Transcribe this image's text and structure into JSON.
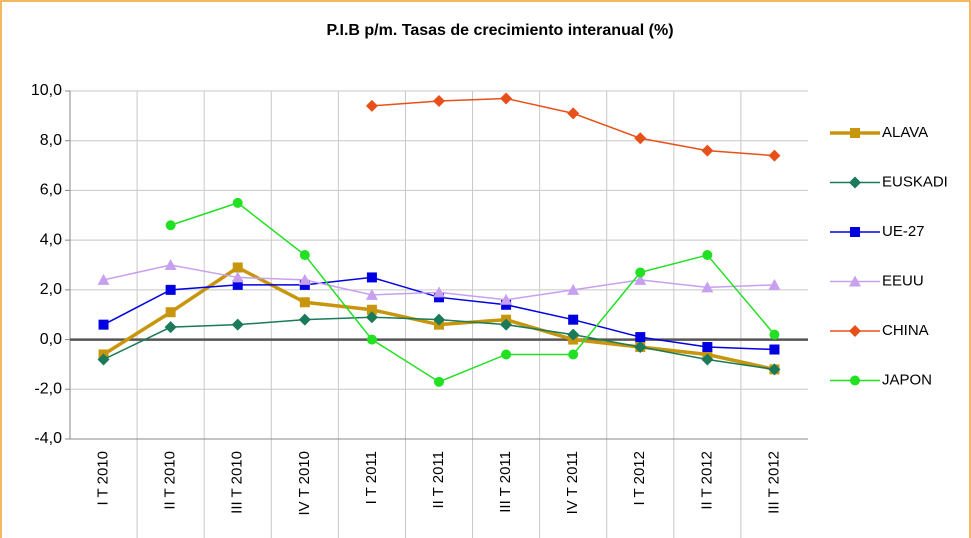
{
  "chart_data": {
    "type": "line",
    "title": "P.I.B p/m. Tasas de crecimiento interanual (%)",
    "categories": [
      "I T 2010",
      "II T 2010",
      "III T 2010",
      "IV T 2010",
      "I T 2011",
      "II T 2011",
      "III T 2011",
      "IV T 2011",
      "I T 2012",
      "II T 2012",
      "III T 2012"
    ],
    "series": [
      {
        "name": "ALAVA",
        "color": "#c8960c",
        "marker": "square",
        "values": [
          -0.6,
          1.1,
          2.9,
          1.5,
          1.2,
          0.6,
          0.8,
          0.0,
          -0.3,
          -0.6,
          -1.2
        ]
      },
      {
        "name": "EUSKADI",
        "color": "#1a7a5a",
        "marker": "diamond",
        "values": [
          -0.8,
          0.5,
          0.6,
          0.8,
          0.9,
          0.8,
          0.6,
          0.2,
          -0.3,
          -0.8,
          -1.2
        ]
      },
      {
        "name": "UE-27",
        "color": "#0000e0",
        "marker": "square",
        "values": [
          0.6,
          2.0,
          2.2,
          2.2,
          2.5,
          1.7,
          1.4,
          0.8,
          0.1,
          -0.3,
          -0.4
        ]
      },
      {
        "name": "EEUU",
        "color": "#c8a0f0",
        "marker": "triangle",
        "values": [
          2.4,
          3.0,
          2.5,
          2.4,
          1.8,
          1.9,
          1.6,
          2.0,
          2.4,
          2.1,
          2.2
        ]
      },
      {
        "name": "CHINA",
        "color": "#e8501a",
        "marker": "diamond",
        "values": [
          null,
          null,
          null,
          null,
          9.4,
          9.6,
          9.7,
          9.1,
          8.1,
          7.6,
          7.4
        ]
      },
      {
        "name": "JAPON",
        "color": "#22e022",
        "marker": "circle",
        "values": [
          null,
          4.6,
          5.5,
          3.4,
          0.0,
          -1.7,
          -0.6,
          -0.6,
          2.7,
          3.4,
          0.2
        ]
      }
    ],
    "ylim": [
      -4,
      10
    ],
    "yticks": [
      {
        "value": -4,
        "label": "-4,0"
      },
      {
        "value": -2,
        "label": "-2,0"
      },
      {
        "value": 0,
        "label": "0,0"
      },
      {
        "value": 2,
        "label": "2,0"
      },
      {
        "value": 4,
        "label": "4,0"
      },
      {
        "value": 6,
        "label": "6,0"
      },
      {
        "value": 8,
        "label": "8,0"
      },
      {
        "value": 10,
        "label": "10,0"
      }
    ],
    "grid": true,
    "legend": "right"
  }
}
